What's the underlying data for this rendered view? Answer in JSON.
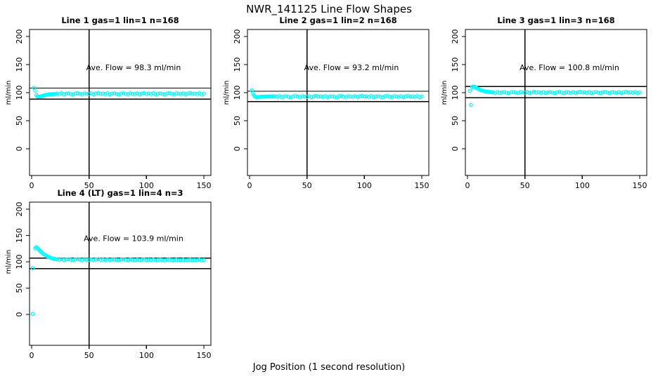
{
  "figure": {
    "title": "NWR_141125  Line Flow Shapes",
    "xlabel": "Jog Position (1 second resolution)",
    "background": "#ffffff",
    "axis_color": "#000000",
    "marker_color": "#00FFFF"
  },
  "chart_data": [
    {
      "type": "scatter",
      "title": "Line 1 gas=1 lin=1 n=168",
      "annotation": "Ave. Flow =  98.3  ml/min",
      "ave_flow_ml_min": 98.3,
      "ylabel": "ml/min",
      "xticks": [
        0,
        50,
        100,
        150
      ],
      "yticks": [
        0,
        50,
        100,
        150,
        200
      ],
      "xlim": [
        -6,
        156
      ],
      "ylim": [
        -47,
        214
      ],
      "ref_hlines": [
        108,
        88.5
      ],
      "ref_vline": 50,
      "marker_color": "#00FFFF",
      "points": [
        [
          2,
          108.5
        ],
        [
          3,
          103.5
        ],
        [
          4,
          96
        ],
        [
          5,
          93.2
        ],
        [
          6,
          92.6
        ],
        [
          7,
          92.9
        ],
        [
          8,
          93.4
        ],
        [
          9,
          94
        ],
        [
          10,
          94.7
        ],
        [
          11,
          95.3
        ],
        [
          12,
          95.8
        ],
        [
          13,
          96.2
        ],
        [
          14,
          96.5
        ],
        [
          15,
          96.8
        ],
        [
          16,
          97
        ],
        [
          17,
          97.2
        ],
        [
          18,
          97.4
        ],
        [
          19,
          97.5
        ],
        [
          20,
          97.6
        ],
        [
          21,
          97.7
        ],
        [
          22,
          98.3
        ],
        [
          24,
          97.5
        ],
        [
          26,
          98.9
        ],
        [
          28,
          97.1
        ],
        [
          30,
          98.2
        ],
        [
          32,
          98.7
        ],
        [
          34,
          97.7
        ],
        [
          36,
          96.9
        ],
        [
          38,
          98.5
        ],
        [
          40,
          99
        ],
        [
          42,
          97.8
        ],
        [
          44,
          97.3
        ],
        [
          46,
          98.8
        ],
        [
          48,
          98
        ],
        [
          50,
          97.6
        ],
        [
          52,
          98.6
        ],
        [
          54,
          97.2
        ],
        [
          56,
          98.4
        ],
        [
          58,
          99.1
        ],
        [
          60,
          97.9
        ],
        [
          62,
          98.3
        ],
        [
          64,
          97.5
        ],
        [
          66,
          98.9
        ],
        [
          68,
          97.1
        ],
        [
          70,
          98.2
        ],
        [
          72,
          98.7
        ],
        [
          74,
          97.7
        ],
        [
          76,
          96.9
        ],
        [
          78,
          98.5
        ],
        [
          80,
          99
        ],
        [
          82,
          97.8
        ],
        [
          84,
          97.3
        ],
        [
          86,
          98.8
        ],
        [
          88,
          98
        ],
        [
          90,
          97.6
        ],
        [
          92,
          98.6
        ],
        [
          94,
          97.2
        ],
        [
          96,
          98.4
        ],
        [
          98,
          99.1
        ],
        [
          100,
          97.9
        ],
        [
          102,
          98.3
        ],
        [
          104,
          97.5
        ],
        [
          106,
          98.9
        ],
        [
          108,
          97.1
        ],
        [
          110,
          98.2
        ],
        [
          112,
          98.7
        ],
        [
          114,
          97.7
        ],
        [
          116,
          96.9
        ],
        [
          118,
          98.5
        ],
        [
          120,
          99
        ],
        [
          122,
          97.8
        ],
        [
          124,
          97.3
        ],
        [
          126,
          98.8
        ],
        [
          128,
          98
        ],
        [
          130,
          97.6
        ],
        [
          132,
          98.6
        ],
        [
          134,
          97.2
        ],
        [
          136,
          98.4
        ],
        [
          138,
          99.1
        ],
        [
          140,
          97.9
        ],
        [
          142,
          98.3
        ],
        [
          144,
          97.5
        ],
        [
          146,
          98.9
        ],
        [
          148,
          97.1
        ],
        [
          150,
          98.2
        ]
      ]
    },
    {
      "type": "scatter",
      "title": "Line 2 gas=1 lin=2 n=168",
      "annotation": "Ave. Flow =  93.2  ml/min",
      "ave_flow_ml_min": 93.2,
      "ylabel": "ml/min",
      "xticks": [
        0,
        50,
        100,
        150
      ],
      "yticks": [
        0,
        50,
        100,
        150,
        200
      ],
      "xlim": [
        -6,
        156
      ],
      "ylim": [
        -47,
        214
      ],
      "ref_hlines": [
        102.5,
        84
      ],
      "ref_vline": 50,
      "marker_color": "#00FFFF",
      "points": [
        [
          2,
          104
        ],
        [
          3,
          97.5
        ],
        [
          4,
          94.5
        ],
        [
          5,
          93
        ],
        [
          6,
          92.3
        ],
        [
          7,
          92.2
        ],
        [
          8,
          92.4
        ],
        [
          9,
          92.6
        ],
        [
          10,
          92.8
        ],
        [
          11,
          92.9
        ],
        [
          12,
          93
        ],
        [
          13,
          93
        ],
        [
          14,
          93.1
        ],
        [
          15,
          93.1
        ],
        [
          16,
          93.1
        ],
        [
          17,
          93.2
        ],
        [
          18,
          93.2
        ],
        [
          19,
          93.2
        ],
        [
          20,
          93.2
        ],
        [
          21,
          93.2
        ],
        [
          22,
          93.3
        ],
        [
          24,
          92.5
        ],
        [
          26,
          93.9
        ],
        [
          28,
          92.1
        ],
        [
          30,
          93.2
        ],
        [
          32,
          93.7
        ],
        [
          34,
          92.7
        ],
        [
          36,
          91.9
        ],
        [
          38,
          93.5
        ],
        [
          40,
          94
        ],
        [
          42,
          92.8
        ],
        [
          44,
          92.3
        ],
        [
          46,
          93.8
        ],
        [
          48,
          93
        ],
        [
          50,
          92.6
        ],
        [
          52,
          93.6
        ],
        [
          54,
          92.2
        ],
        [
          56,
          93.4
        ],
        [
          58,
          94.1
        ],
        [
          60,
          92.9
        ],
        [
          62,
          93.3
        ],
        [
          64,
          92.5
        ],
        [
          66,
          93.9
        ],
        [
          68,
          92.1
        ],
        [
          70,
          93.2
        ],
        [
          72,
          93.7
        ],
        [
          74,
          92.7
        ],
        [
          76,
          91.9
        ],
        [
          78,
          93.5
        ],
        [
          80,
          94
        ],
        [
          82,
          92.8
        ],
        [
          84,
          92.3
        ],
        [
          86,
          93.8
        ],
        [
          88,
          93
        ],
        [
          90,
          92.6
        ],
        [
          92,
          93.6
        ],
        [
          94,
          92.2
        ],
        [
          96,
          93.4
        ],
        [
          98,
          94.1
        ],
        [
          100,
          92.9
        ],
        [
          102,
          93.3
        ],
        [
          104,
          92.5
        ],
        [
          106,
          93.9
        ],
        [
          108,
          92.1
        ],
        [
          110,
          93.2
        ],
        [
          112,
          93.7
        ],
        [
          114,
          92.7
        ],
        [
          116,
          91.9
        ],
        [
          118,
          93.5
        ],
        [
          120,
          94
        ],
        [
          122,
          92.8
        ],
        [
          124,
          92.3
        ],
        [
          126,
          93.8
        ],
        [
          128,
          93
        ],
        [
          130,
          92.6
        ],
        [
          132,
          93.6
        ],
        [
          134,
          92.2
        ],
        [
          136,
          93.4
        ],
        [
          138,
          94.1
        ],
        [
          140,
          92.9
        ],
        [
          142,
          93.3
        ],
        [
          144,
          92.5
        ],
        [
          146,
          93.9
        ],
        [
          148,
          92.1
        ],
        [
          150,
          93.2
        ]
      ]
    },
    {
      "type": "scatter",
      "title": "Line 3 gas=1 lin=3 n=168",
      "annotation": "Ave. Flow =  100.8  ml/min",
      "ave_flow_ml_min": 100.8,
      "ylabel": "ml/min",
      "xticks": [
        0,
        50,
        100,
        150
      ],
      "yticks": [
        0,
        50,
        100,
        150,
        200
      ],
      "xlim": [
        -6,
        156
      ],
      "ylim": [
        -47,
        214
      ],
      "ref_hlines": [
        111,
        91
      ],
      "ref_vline": 50,
      "marker_color": "#00FFFF",
      "points": [
        [
          2,
          103
        ],
        [
          3,
          78
        ],
        [
          4,
          109.5
        ],
        [
          5,
          111
        ],
        [
          6,
          110.5
        ],
        [
          7,
          109.4
        ],
        [
          8,
          108.2
        ],
        [
          9,
          107
        ],
        [
          10,
          105.9
        ],
        [
          11,
          105
        ],
        [
          12,
          104.2
        ],
        [
          13,
          103.5
        ],
        [
          14,
          102.9
        ],
        [
          15,
          102.4
        ],
        [
          16,
          102
        ],
        [
          17,
          101.7
        ],
        [
          18,
          101.4
        ],
        [
          19,
          101.2
        ],
        [
          20,
          101
        ],
        [
          21,
          100.8
        ],
        [
          22,
          100.6
        ],
        [
          24,
          99.8
        ],
        [
          26,
          101.2
        ],
        [
          28,
          99.4
        ],
        [
          30,
          100.5
        ],
        [
          32,
          101
        ],
        [
          34,
          100
        ],
        [
          36,
          99.2
        ],
        [
          38,
          100.8
        ],
        [
          40,
          101.3
        ],
        [
          42,
          100.1
        ],
        [
          44,
          99.6
        ],
        [
          46,
          101.1
        ],
        [
          48,
          100.3
        ],
        [
          50,
          99.9
        ],
        [
          52,
          100.9
        ],
        [
          54,
          99.5
        ],
        [
          56,
          100.7
        ],
        [
          58,
          101.4
        ],
        [
          60,
          100.2
        ],
        [
          62,
          100.6
        ],
        [
          64,
          99.8
        ],
        [
          66,
          101.2
        ],
        [
          68,
          99.4
        ],
        [
          70,
          100.5
        ],
        [
          72,
          101
        ],
        [
          74,
          100
        ],
        [
          76,
          99.2
        ],
        [
          78,
          100.8
        ],
        [
          80,
          101.3
        ],
        [
          82,
          100.1
        ],
        [
          84,
          99.6
        ],
        [
          86,
          101.1
        ],
        [
          88,
          100.3
        ],
        [
          90,
          99.9
        ],
        [
          92,
          100.9
        ],
        [
          94,
          99.5
        ],
        [
          96,
          100.7
        ],
        [
          98,
          101.4
        ],
        [
          100,
          100.2
        ],
        [
          102,
          100.6
        ],
        [
          104,
          99.8
        ],
        [
          106,
          101.2
        ],
        [
          108,
          99.4
        ],
        [
          110,
          100.5
        ],
        [
          112,
          101
        ],
        [
          114,
          100
        ],
        [
          116,
          99.2
        ],
        [
          118,
          100.8
        ],
        [
          120,
          101.3
        ],
        [
          122,
          100.1
        ],
        [
          124,
          99.6
        ],
        [
          126,
          101.1
        ],
        [
          128,
          100.3
        ],
        [
          130,
          99.9
        ],
        [
          132,
          100.9
        ],
        [
          134,
          99.5
        ],
        [
          136,
          100.7
        ],
        [
          138,
          101.4
        ],
        [
          140,
          100.2
        ],
        [
          142,
          100.6
        ],
        [
          144,
          99.8
        ],
        [
          146,
          101.2
        ],
        [
          148,
          99.4
        ],
        [
          150,
          100.5
        ]
      ]
    },
    {
      "type": "scatter",
      "title": "Line 4 (LT) gas=1 lin=4 n=3",
      "annotation": "Ave. Flow =  103.9  ml/min",
      "ave_flow_ml_min": 103.9,
      "ylabel": "ml/min",
      "xticks": [
        0,
        50,
        100,
        150
      ],
      "yticks": [
        0,
        50,
        100,
        150,
        200
      ],
      "xlim": [
        -6,
        156
      ],
      "ylim": [
        -47,
        214
      ],
      "ref_hlines": [
        107,
        87
      ],
      "ref_vline": 50,
      "marker_color": "#00FFFF",
      "points": [
        [
          1,
          88
        ],
        [
          1,
          1
        ],
        [
          3,
          125.5
        ],
        [
          4,
          128
        ],
        [
          5,
          126.5
        ],
        [
          6,
          124
        ],
        [
          7,
          121.5
        ],
        [
          8,
          119.3
        ],
        [
          9,
          117.3
        ],
        [
          10,
          115.5
        ],
        [
          11,
          113.9
        ],
        [
          12,
          112.4
        ],
        [
          13,
          111.1
        ],
        [
          14,
          110
        ],
        [
          15,
          109
        ],
        [
          16,
          108.1
        ],
        [
          17,
          107.3
        ],
        [
          18,
          106.6
        ],
        [
          19,
          106
        ],
        [
          20,
          105.5
        ],
        [
          21,
          105.1
        ],
        [
          22,
          104.6
        ],
        [
          24,
          104
        ],
        [
          26,
          104.9
        ],
        [
          28,
          103.7
        ],
        [
          30,
          104.4
        ],
        [
          32,
          104.8
        ],
        [
          34,
          104
        ],
        [
          36,
          103.5
        ],
        [
          38,
          104.5
        ],
        [
          40,
          104.9
        ],
        [
          42,
          104.1
        ],
        [
          44,
          103.7
        ],
        [
          46,
          104.7
        ],
        [
          48,
          104.1
        ],
        [
          50,
          103.8
        ],
        [
          52,
          104.5
        ],
        [
          54,
          103.6
        ],
        [
          56,
          104.3
        ],
        [
          58,
          104.9
        ],
        [
          60,
          103.9
        ],
        [
          62,
          104.2
        ],
        [
          64,
          103.6
        ],
        [
          66,
          104.6
        ],
        [
          68,
          103.4
        ],
        [
          70,
          104.1
        ],
        [
          72,
          104.5
        ],
        [
          74,
          103.7
        ],
        [
          76,
          103.2
        ],
        [
          78,
          104.2
        ],
        [
          80,
          104.6
        ],
        [
          82,
          103.8
        ],
        [
          84,
          103.4
        ],
        [
          86,
          104.3
        ],
        [
          88,
          103.7
        ],
        [
          90,
          103.4
        ],
        [
          92,
          104.1
        ],
        [
          94,
          103.2
        ],
        [
          96,
          103.9
        ],
        [
          98,
          104.4
        ],
        [
          100,
          103.5
        ],
        [
          102,
          103.8
        ],
        [
          104,
          103.3
        ],
        [
          106,
          104.2
        ],
        [
          108,
          103.1
        ],
        [
          110,
          103.7
        ],
        [
          112,
          104.1
        ],
        [
          114,
          103.4
        ],
        [
          116,
          102.9
        ],
        [
          118,
          103.9
        ],
        [
          120,
          104.2
        ],
        [
          122,
          103.5
        ],
        [
          124,
          103.1
        ],
        [
          126,
          104
        ],
        [
          128,
          103.4
        ],
        [
          130,
          103.2
        ],
        [
          132,
          103.8
        ],
        [
          134,
          102.9
        ],
        [
          136,
          103.6
        ],
        [
          138,
          104
        ],
        [
          140,
          103.3
        ],
        [
          142,
          103.6
        ],
        [
          144,
          103.1
        ],
        [
          146,
          104
        ],
        [
          148,
          102.9
        ],
        [
          150,
          103.5
        ]
      ]
    }
  ]
}
